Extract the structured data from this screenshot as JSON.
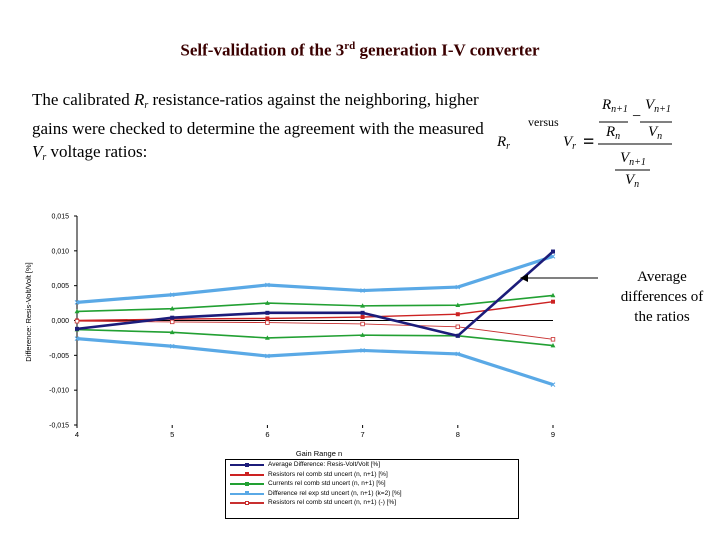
{
  "slide": {
    "title_pre": "Self-validation of the 3",
    "title_sup": "rd",
    "title_post": " generation I-V converter",
    "intro_line1_a": "The calibrated ",
    "intro_var_R": "R",
    "intro_sub_r": "r",
    "intro_line1_b": " resistance-ratios against the neighboring, higher",
    "intro_line2": "gains were checked to determine the agreement with the measured",
    "intro_var_V": "V",
    "intro_line3_b": " voltage ratios:",
    "rr_R": "R",
    "rr_sub": "r",
    "versus": "versus",
    "vr_V": "V",
    "vr_sub": "r",
    "equals": "=",
    "formula": {
      "r_num": "R",
      "r_num_sub": "n+1",
      "r_den": "R",
      "r_den_sub": "n",
      "minus": "−",
      "v_num": "V",
      "v_num_sub": "n+1",
      "v_den": "V",
      "v_den_sub": "n",
      "b_num": "V",
      "b_num_sub": "n+1",
      "b_den": "V",
      "b_den_sub": "n"
    },
    "note": "Average differences of the ratios"
  },
  "chart_data": {
    "type": "line",
    "title": "",
    "xlabel": "Gain Range n",
    "ylabel": "Difference: Resis-Volt/Volt [%]",
    "x": [
      4,
      5,
      6,
      7,
      8,
      9
    ],
    "xlim": [
      4,
      9
    ],
    "ylim": [
      -0.015,
      0.015
    ],
    "yticks": [
      "0,015",
      "0,010",
      "0,005",
      "0,000",
      "-0,005",
      "-0,010",
      "-0,015"
    ],
    "ytick_values": [
      0.015,
      0.01,
      0.005,
      0.0,
      -0.005,
      -0.01,
      -0.015
    ],
    "xticks": [
      "4",
      "5",
      "6",
      "7",
      "8",
      "9"
    ],
    "legend_position": "bottom",
    "series": [
      {
        "name": "Average Difference: Resis-Volt/Volt [%]",
        "color": "#1c1c7a",
        "marker": "square",
        "values": [
          -0.0012,
          0.0004,
          0.0011,
          0.0011,
          -0.0022,
          0.0099
        ]
      },
      {
        "name": "Resistors rel comb std uncert (n, n+1) [%]",
        "color": "#cc2222",
        "marker": "square",
        "values": [
          0.0,
          0.0002,
          0.0003,
          0.0005,
          0.0009,
          0.0027
        ]
      },
      {
        "name": "Currents rel comb std uncert (n, n+1) [%]",
        "color": "#22a033",
        "marker": "triangle",
        "values": [
          0.0013,
          0.0017,
          0.0025,
          0.0021,
          0.0022,
          0.0036
        ]
      },
      {
        "name": "Difference rel exp std uncert (n, n+1) (k=2) [%]",
        "color": "#5aa9e6",
        "marker": "cross",
        "values": [
          0.0026,
          0.0037,
          0.0051,
          0.0043,
          0.0048,
          0.0092
        ]
      },
      {
        "name": "Resistors rel comb std uncert (n, n+1) (-) [%]",
        "color": "#c83030",
        "marker": "open-square",
        "values": [
          -0.0001,
          -0.0002,
          -0.0003,
          -0.0005,
          -0.0009,
          -0.0027
        ]
      },
      {
        "name": "",
        "color": "#22a033",
        "marker": "triangle",
        "values": [
          -0.0013,
          -0.0017,
          -0.0025,
          -0.0021,
          -0.0022,
          -0.0036
        ]
      },
      {
        "name": "",
        "color": "#5aa9e6",
        "marker": "cross",
        "values": [
          -0.0026,
          -0.0037,
          -0.0051,
          -0.0043,
          -0.0048,
          -0.0092
        ]
      }
    ]
  }
}
